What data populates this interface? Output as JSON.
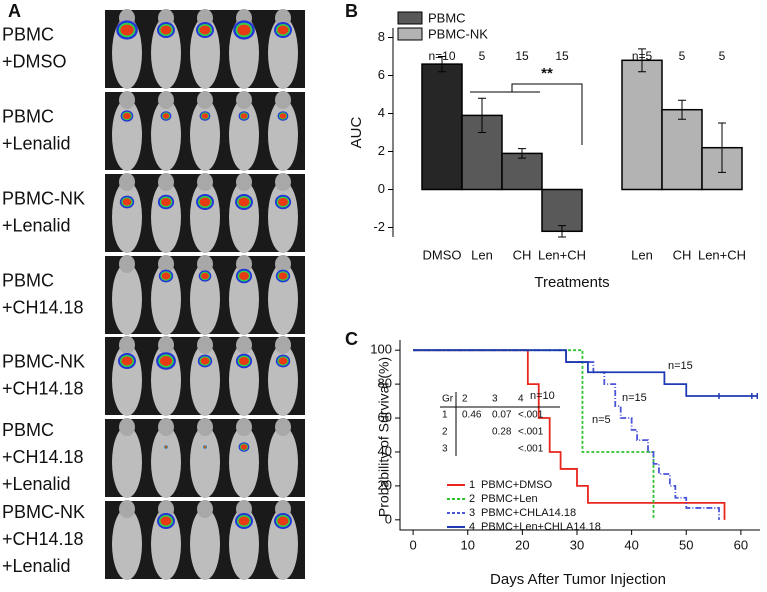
{
  "panel_a": {
    "label": "A",
    "rows": [
      [
        "PBMC",
        "+DMSO"
      ],
      [
        "PBMC",
        "+Lenalid"
      ],
      [
        "PBMC-NK",
        "+Lenalid"
      ],
      [
        "PBMC",
        "+CH14.18"
      ],
      [
        "PBMC-NK",
        "+CH14.18"
      ],
      [
        "PBMC",
        "+CH14.18",
        "+Lenalid"
      ],
      [
        "PBMC-NK",
        "+CH14.18",
        "+Lenalid"
      ]
    ]
  },
  "chart_data": [
    {
      "type": "bar",
      "panel_label": "B",
      "y_label": "AUC",
      "x_label": "Treatments",
      "categories": [
        "DMSO",
        "Len",
        "CH",
        "Len+CH",
        "Len",
        "CH",
        "Len+CH"
      ],
      "n_labels": [
        "n=10",
        "5",
        "15",
        "15",
        "n=5",
        "5",
        "5"
      ],
      "annotation": "**",
      "series": [
        {
          "name": "PBMC",
          "color": "#595959",
          "colors": [
            "#262626",
            "#595959",
            "#595959",
            "#595959",
            null,
            null,
            null
          ],
          "values": [
            6.6,
            3.9,
            1.9,
            -2.2,
            null,
            null,
            null
          ],
          "errors": [
            0.4,
            0.9,
            0.25,
            0.3,
            null,
            null,
            null
          ]
        },
        {
          "name": "PBMC-NK",
          "color": "#b3b3b3",
          "colors": [
            null,
            null,
            null,
            null,
            "#b3b3b3",
            "#b3b3b3",
            "#b3b3b3"
          ],
          "values": [
            null,
            null,
            null,
            null,
            6.8,
            4.2,
            2.2
          ],
          "errors": [
            null,
            null,
            null,
            null,
            0.6,
            0.5,
            1.3
          ]
        }
      ],
      "ylim": [
        -2.5,
        8.5
      ],
      "yticks": [
        -2,
        0,
        2,
        4,
        6,
        8
      ]
    },
    {
      "type": "step",
      "panel_label": "C",
      "y_label": "Probability of Survival (%)",
      "x_label": "Days After Tumor Injection",
      "xlim": [
        -2.4,
        63.5
      ],
      "xticks": [
        0,
        10,
        20,
        30,
        40,
        50,
        60
      ],
      "ylim": [
        -6,
        106
      ],
      "yticks": [
        0,
        20,
        40,
        60,
        80,
        100
      ],
      "annotations": [
        "n=10",
        "n=5",
        "n=15",
        "n=15"
      ],
      "table": {
        "rows": [
          [
            "Gr",
            "2",
            "3",
            "4"
          ],
          [
            "1",
            "0.46",
            "0.07",
            "<.001"
          ],
          [
            "2",
            null,
            "0.28",
            "<.001"
          ],
          [
            "3",
            null,
            null,
            "<.001"
          ]
        ]
      },
      "series": [
        {
          "id": "1",
          "name": "PBMC+DMSO",
          "color": "#e8261e",
          "dash": false,
          "x": [
            0,
            21,
            21,
            23,
            23,
            25,
            25,
            27,
            27,
            30,
            30,
            32,
            32,
            57,
            57
          ],
          "values": [
            100,
            100,
            80,
            80,
            60,
            60,
            40,
            40,
            30,
            30,
            20,
            20,
            10,
            10,
            0
          ]
        },
        {
          "id": "2",
          "name": "PBMC+Len",
          "color": "#2fc22f",
          "dash": true,
          "x": [
            0,
            31,
            31,
            44,
            44
          ],
          "values": [
            100,
            100,
            40,
            40,
            0
          ]
        },
        {
          "id": "3",
          "name": "PBMC+CHLA14.18",
          "color": "#4a55d8",
          "dash": true,
          "x": [
            0,
            28,
            28,
            33,
            33,
            35,
            35,
            37,
            37,
            38,
            38,
            40,
            40,
            41,
            41,
            43,
            43,
            44,
            44,
            45,
            45,
            47,
            47,
            48,
            48,
            50,
            50,
            56,
            56
          ],
          "values": [
            100,
            100,
            93,
            93,
            87,
            87,
            80,
            80,
            67,
            67,
            60,
            60,
            53,
            53,
            47,
            47,
            40,
            40,
            33,
            33,
            27,
            27,
            20,
            20,
            13,
            13,
            7,
            7,
            0
          ]
        },
        {
          "id": "4",
          "name": "PBMC+Len+CHLA14.18",
          "color": "#1f3bb3",
          "dash": false,
          "x": [
            0,
            28,
            28,
            32,
            32,
            46,
            46,
            50,
            50,
            63
          ],
          "values": [
            100,
            100,
            93,
            93,
            87,
            87,
            80,
            80,
            73,
            73
          ],
          "censored": [
            56,
            62,
            63
          ]
        }
      ]
    }
  ]
}
